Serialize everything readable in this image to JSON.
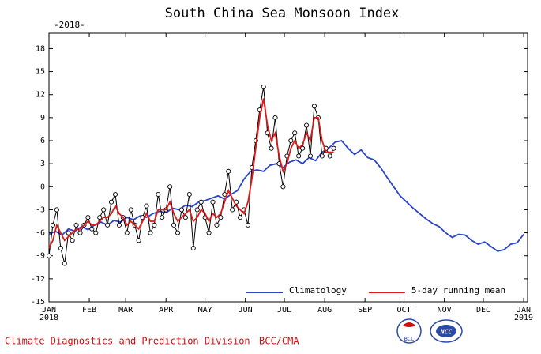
{
  "chart_data": {
    "type": "line",
    "title": "South China Sea Monsoon Index",
    "subtitle": "-2018-",
    "start_year_label": "2018",
    "end_year_label": "2019",
    "footer": "Climate Diagnostics and Prediction Division",
    "footer_org": "BCC/CMA",
    "logos": [
      "BCC",
      "NCC"
    ],
    "xlim": [
      0,
      368
    ],
    "ylim": [
      -15,
      20
    ],
    "yticks": [
      -15,
      -12,
      -9,
      -6,
      -3,
      0,
      3,
      6,
      9,
      12,
      15,
      18
    ],
    "xticks": [
      {
        "value": 0,
        "label": "JAN"
      },
      {
        "value": 31,
        "label": "FEB"
      },
      {
        "value": 59,
        "label": "MAR"
      },
      {
        "value": 90,
        "label": "APR"
      },
      {
        "value": 120,
        "label": "MAY"
      },
      {
        "value": 151,
        "label": "JUN"
      },
      {
        "value": 181,
        "label": "JUL"
      },
      {
        "value": 212,
        "label": "AUG"
      },
      {
        "value": 243,
        "label": "SEP"
      },
      {
        "value": 273,
        "label": "OCT"
      },
      {
        "value": 304,
        "label": "NOV"
      },
      {
        "value": 334,
        "label": "DEC"
      },
      {
        "value": 365,
        "label": "JAN"
      }
    ],
    "legend": "lower right",
    "series": [
      {
        "name": "Climatology",
        "color": "#2a45c8",
        "x": [
          0,
          5,
          10,
          15,
          20,
          25,
          30,
          35,
          40,
          45,
          50,
          55,
          60,
          65,
          70,
          75,
          80,
          85,
          90,
          95,
          100,
          105,
          110,
          115,
          120,
          125,
          130,
          135,
          140,
          145,
          150,
          155,
          160,
          165,
          170,
          175,
          180,
          185,
          190,
          195,
          200,
          205,
          210,
          215,
          220,
          225,
          230,
          235,
          240,
          245,
          250,
          255,
          260,
          265,
          270,
          275,
          280,
          285,
          290,
          295,
          300,
          305,
          310,
          315,
          320,
          325,
          330,
          335,
          340,
          345,
          350,
          355,
          360,
          365
        ],
        "values": [
          -6.2,
          -5.8,
          -6.3,
          -5.5,
          -5.8,
          -5.2,
          -5.6,
          -5.0,
          -4.6,
          -5.0,
          -4.4,
          -4.6,
          -4.0,
          -4.3,
          -3.8,
          -4.0,
          -3.5,
          -3.2,
          -3.4,
          -2.8,
          -3.0,
          -2.4,
          -2.6,
          -2.0,
          -1.8,
          -1.5,
          -1.2,
          -1.6,
          -1.0,
          -0.5,
          1.0,
          2.0,
          2.2,
          2.0,
          2.8,
          3.0,
          2.5,
          3.2,
          3.5,
          3.0,
          3.8,
          3.4,
          4.5,
          5.0,
          5.8,
          6.0,
          5.0,
          4.2,
          4.8,
          3.8,
          3.5,
          2.5,
          1.2,
          0.0,
          -1.2,
          -2.0,
          -2.8,
          -3.5,
          -4.2,
          -4.8,
          -5.2,
          -6.0,
          -6.6,
          -6.2,
          -6.3,
          -7.0,
          -7.5,
          -7.2,
          -7.8,
          -8.4,
          -8.2,
          -7.5,
          -7.3,
          -6.2
        ]
      },
      {
        "color": "#000000",
        "markers": true,
        "x": [
          0,
          3,
          6,
          9,
          12,
          15,
          18,
          21,
          24,
          27,
          30,
          33,
          36,
          39,
          42,
          45,
          48,
          51,
          54,
          57,
          60,
          63,
          66,
          69,
          72,
          75,
          78,
          81,
          84,
          87,
          90,
          93,
          96,
          99,
          102,
          105,
          108,
          111,
          114,
          117,
          120,
          123,
          126,
          129,
          132,
          135,
          138,
          141,
          144,
          147,
          150,
          153,
          156,
          159,
          162,
          165,
          168,
          171,
          174,
          177,
          180,
          183,
          186,
          189,
          192,
          195,
          198,
          201,
          204,
          207,
          210,
          213,
          216,
          219
        ],
        "values": [
          -9,
          -5,
          -3,
          -8,
          -10,
          -6,
          -7,
          -5,
          -6,
          -5,
          -4,
          -5.5,
          -6,
          -4,
          -3,
          -5,
          -2,
          -1,
          -5,
          -4,
          -6,
          -3,
          -5,
          -7,
          -4,
          -2.5,
          -6,
          -5,
          -1,
          -4,
          -3,
          0,
          -5,
          -6,
          -3,
          -4,
          -1,
          -8,
          -3,
          -2,
          -4,
          -6,
          -2,
          -5,
          -4,
          -1,
          2,
          -3,
          -2,
          -4,
          -3,
          -5,
          2.5,
          6,
          10,
          13,
          7,
          5,
          9,
          3,
          0,
          4,
          6,
          7,
          4,
          5,
          8,
          4,
          10.5,
          9,
          4,
          5,
          4,
          5
        ]
      },
      {
        "name": "5-day running mean",
        "color": "#e01818",
        "x": [
          0,
          3,
          6,
          9,
          12,
          15,
          18,
          21,
          24,
          27,
          30,
          33,
          36,
          39,
          42,
          45,
          48,
          51,
          54,
          57,
          60,
          63,
          66,
          69,
          72,
          75,
          78,
          81,
          84,
          87,
          90,
          93,
          96,
          99,
          102,
          105,
          108,
          111,
          114,
          117,
          120,
          123,
          126,
          129,
          132,
          135,
          138,
          141,
          144,
          147,
          150,
          153,
          156,
          159,
          162,
          165,
          168,
          171,
          174,
          177,
          180,
          183,
          186,
          189,
          192,
          195,
          198,
          201,
          204,
          207,
          210,
          213,
          216,
          219
        ],
        "values": [
          -8,
          -7,
          -5,
          -6,
          -7,
          -6.5,
          -6,
          -5.5,
          -5.5,
          -5,
          -4.5,
          -5,
          -5,
          -4.5,
          -4,
          -4,
          -3.5,
          -2.5,
          -3.5,
          -4,
          -5,
          -4.5,
          -5,
          -5.5,
          -4.5,
          -3.5,
          -4.5,
          -4.5,
          -3,
          -3,
          -3,
          -2,
          -3.5,
          -4.5,
          -4,
          -3.5,
          -3,
          -4.5,
          -4,
          -3,
          -3.5,
          -4.5,
          -3.5,
          -4,
          -3.5,
          -2,
          -0.5,
          -1.5,
          -2.5,
          -3,
          -3.5,
          -2,
          1,
          5,
          9,
          11.5,
          8,
          6,
          7,
          4,
          2,
          3,
          5,
          6,
          5,
          5.5,
          7,
          6,
          9,
          9,
          6,
          4.5,
          4.5,
          4.5
        ]
      }
    ]
  }
}
